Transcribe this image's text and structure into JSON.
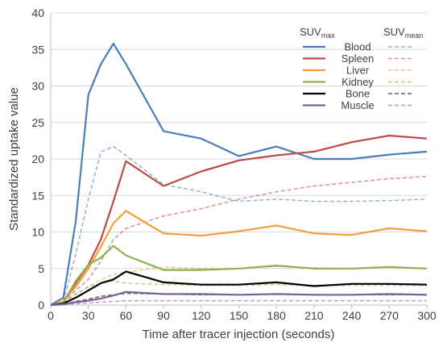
{
  "chart_data": {
    "type": "line",
    "xlabel": "Time after tracer injection (seconds)",
    "ylabel": "Standardized uptake value",
    "xlim": [
      0,
      300
    ],
    "ylim": [
      0,
      40
    ],
    "xticks": [
      0,
      30,
      60,
      90,
      120,
      150,
      180,
      210,
      240,
      270,
      300
    ],
    "yticks": [
      0,
      5,
      10,
      15,
      20,
      25,
      30,
      35,
      40
    ],
    "grid": "horizontal",
    "legend": {
      "placement": "top-right",
      "max_header": {
        "main": "SUV",
        "sub": "max"
      },
      "mean_header": {
        "main": "SUV",
        "sub": "mean"
      }
    },
    "series": [
      {
        "name": "Blood",
        "color": "#4a7ebb",
        "max": {
          "x": [
            0,
            10,
            20,
            30,
            40,
            50,
            60,
            90,
            120,
            150,
            180,
            210,
            240,
            270,
            300
          ],
          "y": [
            0,
            1,
            11.5,
            28.8,
            33,
            35.8,
            33,
            23.8,
            22.8,
            20.4,
            21.7,
            20,
            20,
            20.6,
            21
          ]
        },
        "mean": {
          "x": [
            0,
            10,
            20,
            30,
            40,
            50,
            60,
            90,
            120,
            150,
            180,
            210,
            240,
            270,
            300
          ],
          "y": [
            0,
            0.5,
            7,
            14.5,
            21,
            21.7,
            20.5,
            16.5,
            15.5,
            14.2,
            14.5,
            14.2,
            14.2,
            14.3,
            14.5
          ]
        }
      },
      {
        "name": "Spleen",
        "color": "#be4b48",
        "max": {
          "x": [
            0,
            10,
            20,
            30,
            40,
            50,
            60,
            90,
            120,
            150,
            180,
            210,
            240,
            270,
            300
          ],
          "y": [
            0,
            0.5,
            3,
            5.5,
            9,
            14.2,
            19.7,
            16.3,
            18.3,
            19.8,
            20.5,
            21,
            22.3,
            23.2,
            22.8
          ]
        },
        "mean": {
          "x": [
            0,
            10,
            20,
            30,
            40,
            50,
            60,
            90,
            120,
            150,
            180,
            210,
            240,
            270,
            300
          ],
          "y": [
            0,
            0.3,
            2,
            3.5,
            6,
            9,
            10.5,
            12.2,
            13.2,
            14.5,
            15.5,
            16.3,
            16.8,
            17.3,
            17.6
          ]
        }
      },
      {
        "name": "Liver",
        "color": "#f59d3d",
        "max": {
          "x": [
            0,
            10,
            20,
            30,
            40,
            50,
            60,
            90,
            120,
            150,
            180,
            210,
            240,
            270,
            300
          ],
          "y": [
            0,
            0.5,
            2.5,
            5,
            8,
            11.2,
            12.9,
            9.8,
            9.5,
            10.1,
            10.9,
            9.8,
            9.6,
            10.5,
            10.1
          ]
        },
        "mean": {
          "x": [
            0,
            10,
            20,
            30,
            40,
            50,
            60,
            90,
            120,
            150,
            180,
            210,
            240,
            270,
            300
          ],
          "y": [
            0,
            0.3,
            1.5,
            2.5,
            3.5,
            4.2,
            4.5,
            5.2,
            5,
            5,
            5.3,
            5.1,
            5,
            5.2,
            5
          ]
        }
      },
      {
        "name": "Kidney",
        "color": "#8fb24f",
        "max": {
          "x": [
            0,
            10,
            20,
            30,
            40,
            50,
            60,
            90,
            120,
            150,
            180,
            210,
            240,
            270,
            300
          ],
          "y": [
            0,
            0.3,
            3.3,
            5.5,
            6.5,
            8.1,
            6.8,
            4.8,
            4.8,
            5,
            5.4,
            5,
            5,
            5.2,
            5
          ]
        },
        "mean": {
          "x": [
            0,
            10,
            20,
            30,
            40,
            50,
            60,
            90,
            120,
            150,
            180,
            210,
            240,
            270,
            300
          ],
          "y": [
            0,
            0.2,
            1.5,
            2.5,
            3,
            3.3,
            3,
            2.8,
            2.7,
            2.7,
            2.8,
            2.7,
            2.7,
            2.7,
            2.7
          ]
        }
      },
      {
        "name": "Bone",
        "color": "#000000",
        "max": {
          "x": [
            0,
            10,
            20,
            30,
            40,
            50,
            60,
            90,
            120,
            150,
            180,
            210,
            240,
            270,
            300
          ],
          "y": [
            0,
            0.2,
            1,
            2,
            3,
            3.5,
            4.6,
            3.1,
            2.8,
            2.8,
            3.1,
            2.6,
            2.9,
            2.9,
            2.8
          ]
        },
        "mean": {
          "x": [
            0,
            10,
            20,
            30,
            40,
            50,
            60,
            90,
            120,
            150,
            180,
            210,
            240,
            270,
            300
          ],
          "y": [
            0,
            0.1,
            0.5,
            0.8,
            1.2,
            1.4,
            1.6,
            1.5,
            1.4,
            1.4,
            1.5,
            1.4,
            1.4,
            1.4,
            1.4
          ]
        }
      },
      {
        "name": "Muscle",
        "color": "#7d5fa0",
        "max": {
          "x": [
            0,
            10,
            20,
            30,
            40,
            50,
            60,
            90,
            120,
            150,
            180,
            210,
            240,
            270,
            300
          ],
          "y": [
            0,
            0.1,
            0.4,
            0.6,
            0.9,
            1.3,
            1.8,
            1.5,
            1.5,
            1.4,
            1.5,
            1.4,
            1.4,
            1.5,
            1.4
          ]
        },
        "mean": {
          "x": [
            0,
            10,
            20,
            30,
            40,
            50,
            60,
            90,
            120,
            150,
            180,
            210,
            240,
            270,
            300
          ],
          "y": [
            0,
            0.05,
            0.2,
            0.3,
            0.4,
            0.5,
            0.6,
            0.6,
            0.6,
            0.6,
            0.6,
            0.6,
            0.6,
            0.6,
            0.6
          ]
        }
      }
    ]
  }
}
